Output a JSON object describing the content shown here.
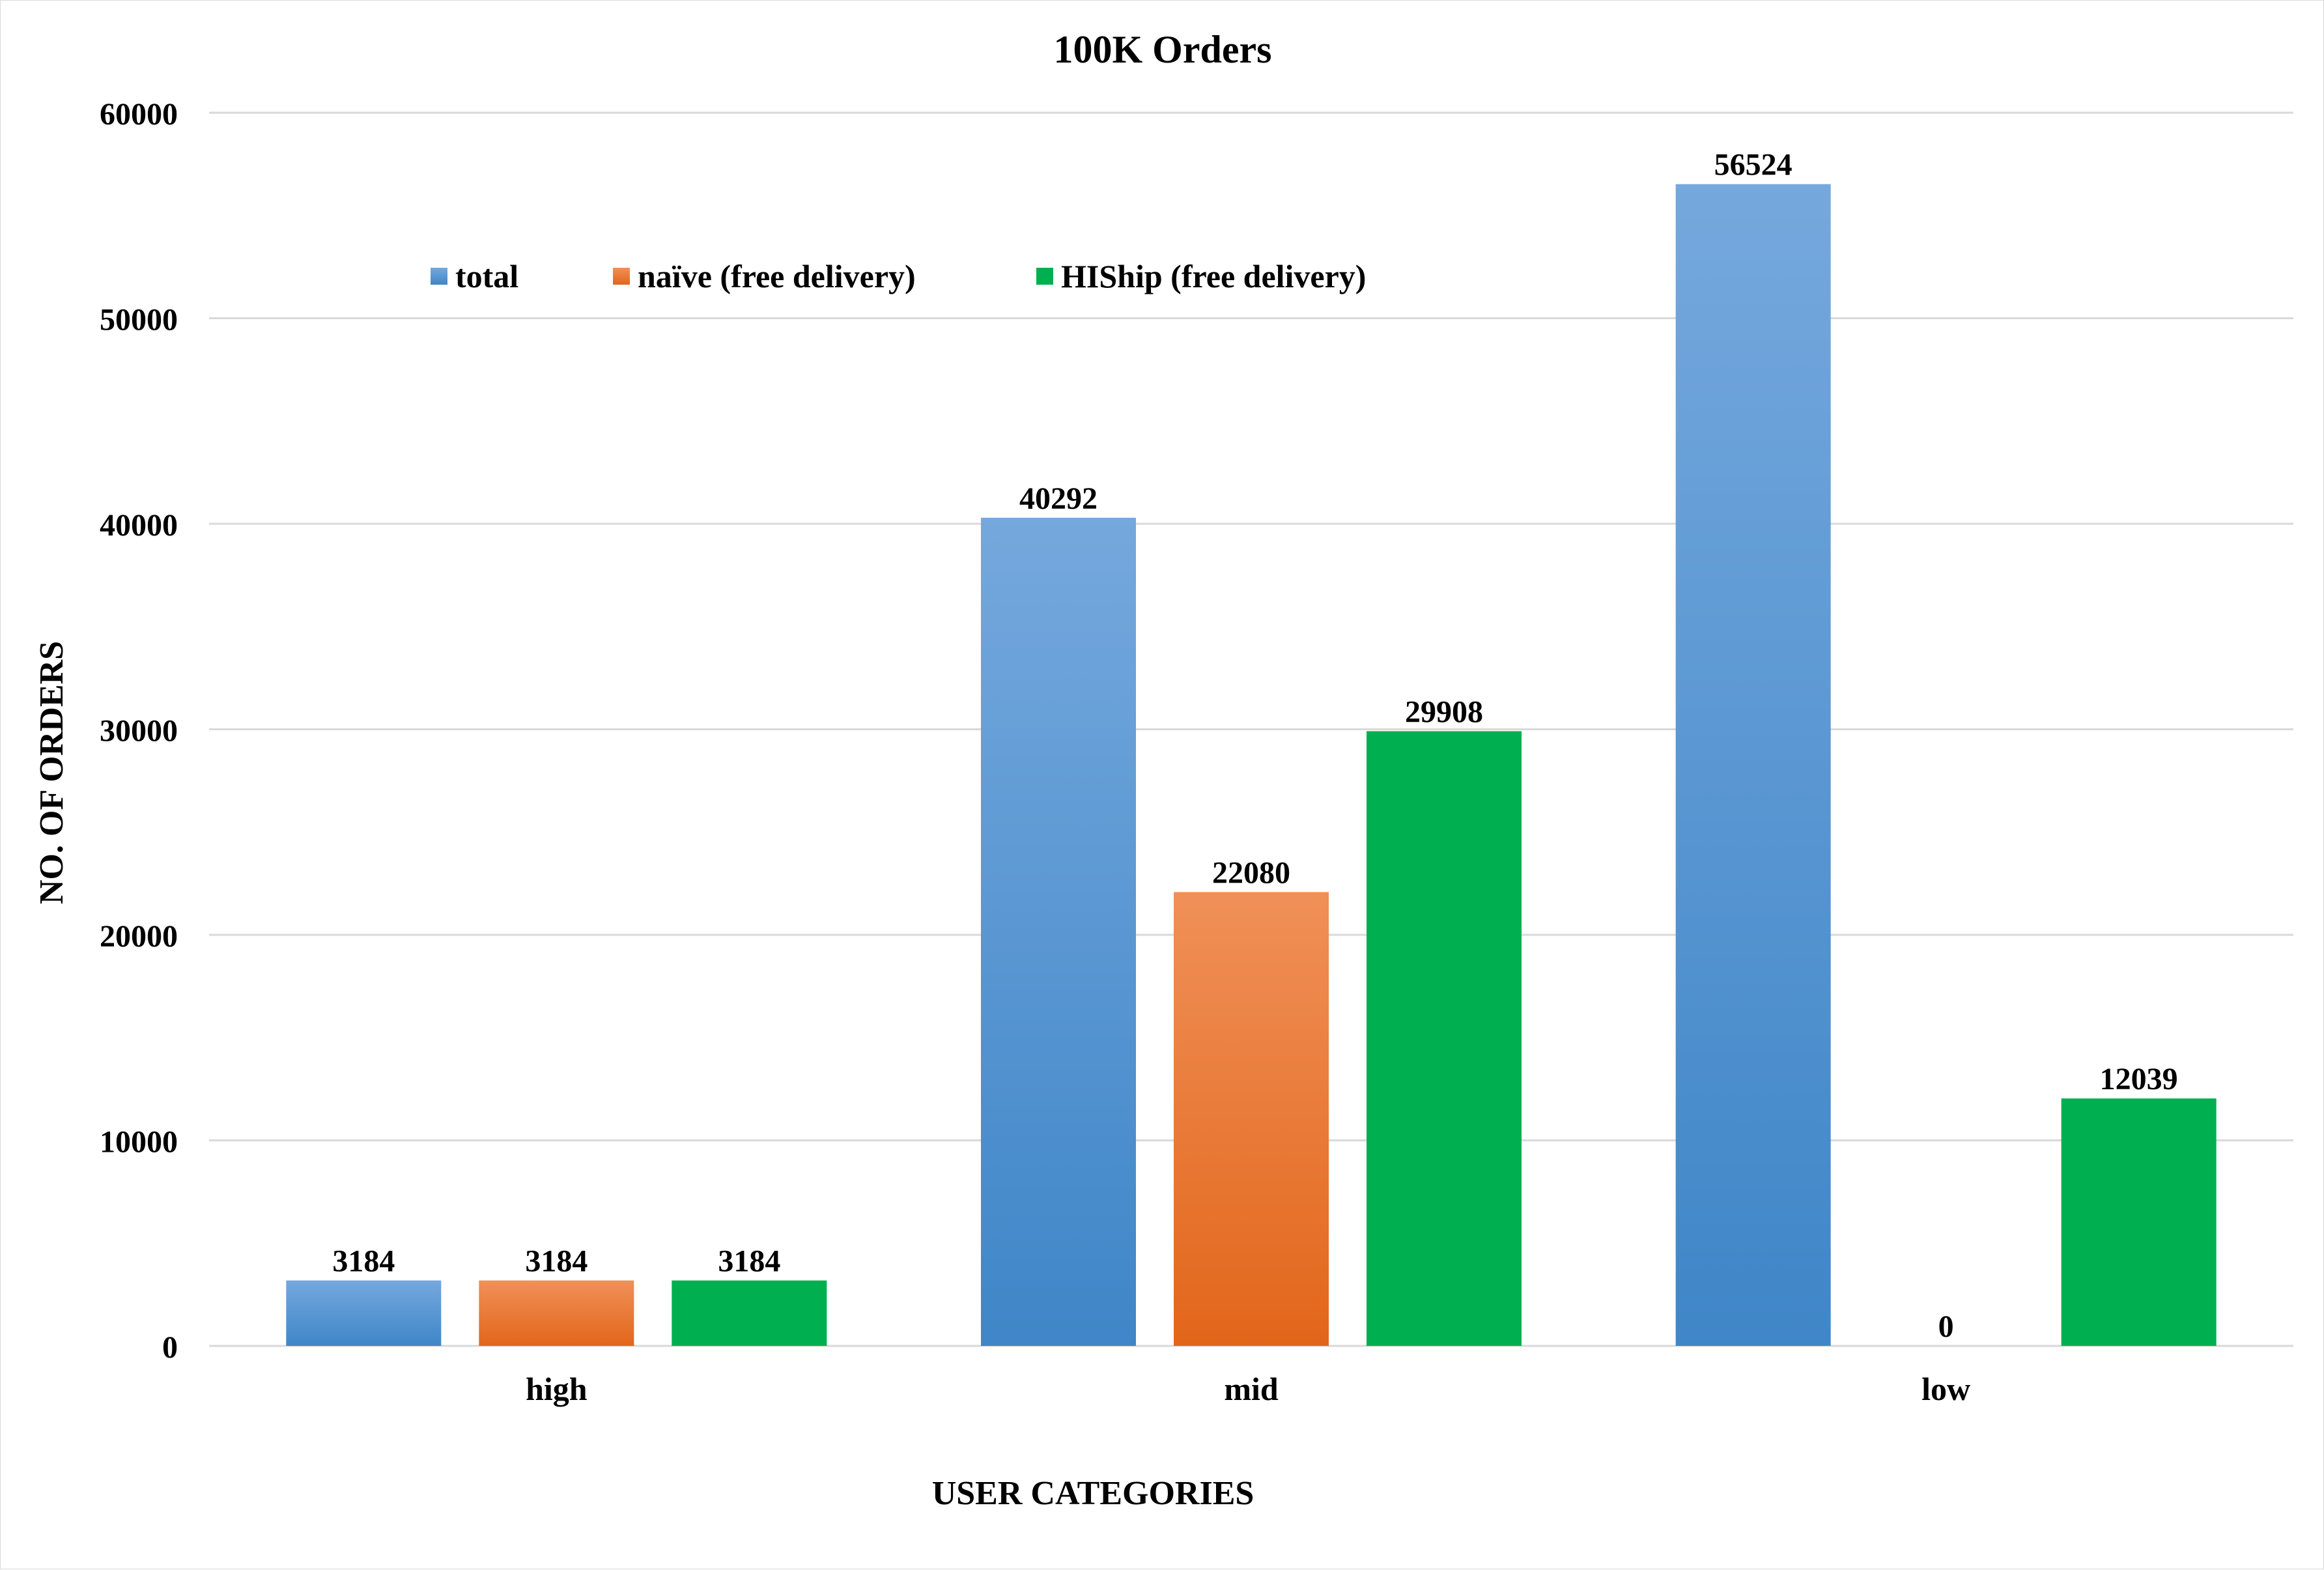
{
  "chart_data": {
    "type": "bar",
    "title": "100K Orders",
    "xlabel": "USER CATEGORIES",
    "ylabel": "NO. OF ORDERS",
    "categories": [
      "high",
      "mid",
      "low"
    ],
    "series": [
      {
        "name": "total",
        "values": [
          3184,
          40292,
          56524
        ],
        "color_top": "#75A8DD",
        "color_bottom": "#3F86C8"
      },
      {
        "name": "naïve (free delivery)",
        "values": [
          3184,
          22080,
          0
        ],
        "color_top": "#F09058",
        "color_bottom": "#E2661A"
      },
      {
        "name": "HIShip (free delivery)",
        "values": [
          3184,
          29908,
          12039
        ],
        "color_top": "#00B050",
        "color_bottom": "#00B050"
      }
    ],
    "ylim": [
      0,
      60000
    ],
    "yticks": [
      0,
      10000,
      20000,
      30000,
      40000,
      50000,
      60000
    ],
    "ytick_labels": [
      "0",
      "10000",
      "20000",
      "30000",
      "40000",
      "50000",
      "60000"
    ],
    "data_labels": [
      [
        "3184",
        "40292",
        "56524"
      ],
      [
        "3184",
        "22080",
        "0"
      ],
      [
        "3184",
        "29908",
        "12039"
      ]
    ],
    "grid": true,
    "legend_position": "top-left",
    "gridline_color": "#D9D9D9"
  }
}
